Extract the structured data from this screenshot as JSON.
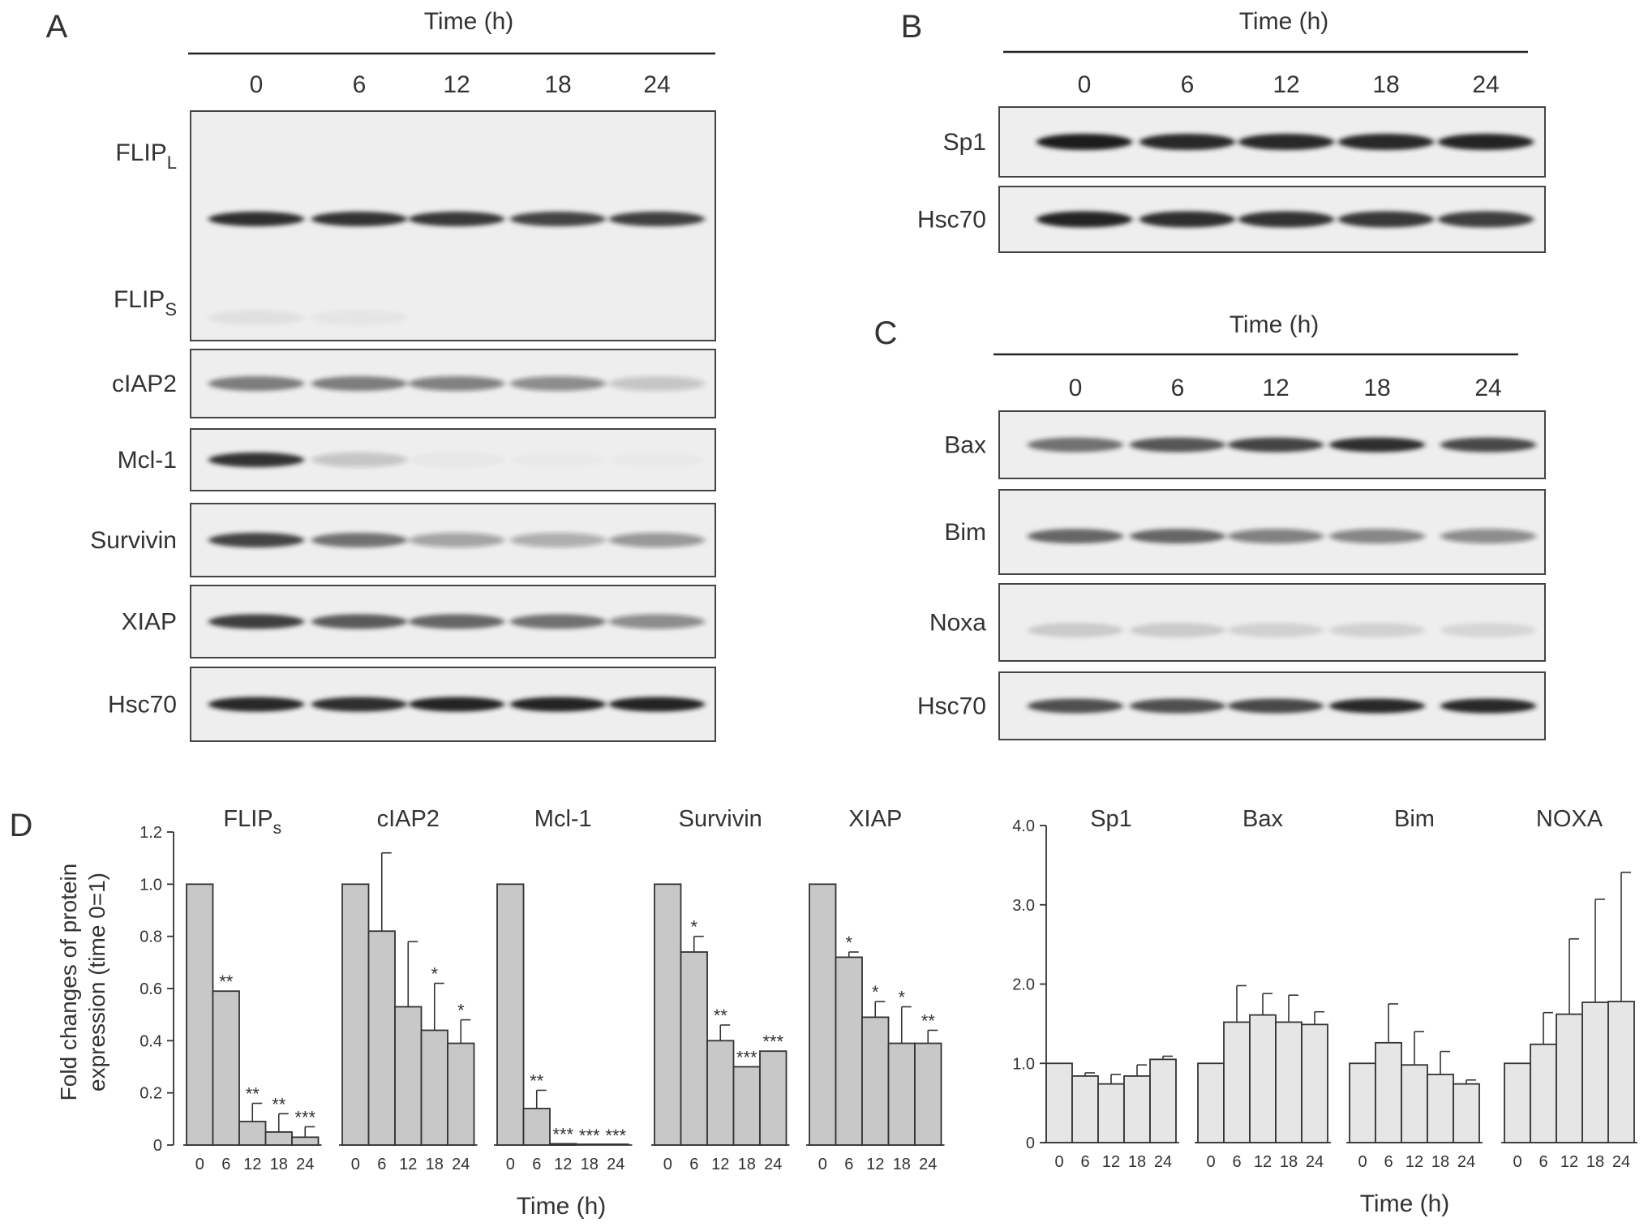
{
  "colors": {
    "panel_bg": "#eeeeee",
    "panel_border": "#444444",
    "band": "#1c1c1c",
    "bar_left": "#c8c8c8",
    "bar_right": "#e6e6e6",
    "bar_stroke": "#333333"
  },
  "panels": {
    "A": {
      "letter": "A",
      "header": "Time (h)",
      "lanes": [
        "0",
        "6",
        "12",
        "18",
        "24"
      ],
      "blots": [
        {
          "labels": [
            {
              "base": "FLIP",
              "sub": "L"
            },
            {
              "base": "FLIP",
              "sub": "S"
            }
          ],
          "bands": [
            {
              "row": 0.47,
              "intensity": [
                0.92,
                0.9,
                0.88,
                0.8,
                0.82
              ]
            },
            {
              "row": 0.9,
              "intensity": [
                0.06,
                0.04,
                0.0,
                0.0,
                0.0
              ]
            }
          ]
        },
        {
          "labels": [
            {
              "base": "cIAP2"
            }
          ],
          "bands": [
            {
              "row": 0.5,
              "intensity": [
                0.55,
                0.55,
                0.5,
                0.45,
                0.2
              ]
            }
          ]
        },
        {
          "labels": [
            {
              "base": "Mcl-1"
            }
          ],
          "bands": [
            {
              "row": 0.5,
              "intensity": [
                0.9,
                0.2,
                0.03,
                0.02,
                0.02
              ]
            }
          ]
        },
        {
          "labels": [
            {
              "base": "Survivin"
            }
          ],
          "bands": [
            {
              "row": 0.5,
              "intensity": [
                0.8,
                0.6,
                0.35,
                0.3,
                0.4
              ]
            }
          ]
        },
        {
          "labels": [
            {
              "base": "XIAP"
            }
          ],
          "bands": [
            {
              "row": 0.5,
              "intensity": [
                0.85,
                0.7,
                0.65,
                0.6,
                0.45
              ]
            }
          ]
        },
        {
          "labels": [
            {
              "base": "Hsc70"
            }
          ],
          "bands": [
            {
              "row": 0.5,
              "intensity": [
                0.95,
                0.92,
                0.97,
                0.97,
                0.97
              ]
            }
          ]
        }
      ]
    },
    "B": {
      "letter": "B",
      "header": "Time (h)",
      "lanes": [
        "0",
        "6",
        "12",
        "18",
        "24"
      ],
      "blots": [
        {
          "labels": [
            {
              "base": "Sp1"
            }
          ],
          "bands": [
            {
              "row": 0.5,
              "intensity": [
                1.0,
                0.95,
                0.95,
                0.95,
                0.97
              ]
            }
          ]
        },
        {
          "labels": [
            {
              "base": "Hsc70"
            }
          ],
          "bands": [
            {
              "row": 0.5,
              "intensity": [
                0.97,
                0.92,
                0.9,
                0.88,
                0.85
              ]
            }
          ]
        }
      ]
    },
    "C": {
      "letter": "C",
      "header": "Time (h)",
      "lanes": [
        "0",
        "6",
        "12",
        "18",
        "24"
      ],
      "blots": [
        {
          "labels": [
            {
              "base": "Bax"
            }
          ],
          "bands": [
            {
              "row": 0.5,
              "intensity": [
                0.6,
                0.72,
                0.8,
                0.92,
                0.78
              ]
            }
          ]
        },
        {
          "labels": [
            {
              "base": "Bim"
            }
          ],
          "bands": [
            {
              "row": 0.55,
              "intensity": [
                0.65,
                0.65,
                0.5,
                0.48,
                0.45
              ]
            }
          ]
        },
        {
          "labels": [
            {
              "base": "Noxa"
            }
          ],
          "bands": [
            {
              "row": 0.6,
              "intensity": [
                0.15,
                0.15,
                0.12,
                0.12,
                0.1
              ]
            }
          ]
        },
        {
          "labels": [
            {
              "base": "Hsc70"
            }
          ],
          "bands": [
            {
              "row": 0.5,
              "intensity": [
                0.75,
                0.75,
                0.78,
                0.95,
                0.95
              ]
            }
          ]
        }
      ]
    },
    "D": {
      "letter": "D",
      "ylabel_line1": "Fold changes of protein",
      "ylabel_line2": "expression (time 0=1)",
      "xlabel": "Time (h)"
    }
  },
  "chart_data": [
    {
      "type": "bar",
      "ylim": [
        0,
        1.2
      ],
      "yticks": [
        "0",
        "0.2",
        "0.4",
        "0.6",
        "0.8",
        "1.0",
        "1.2"
      ],
      "xlabel": "Time (h)",
      "ylabel": "Fold changes of protein expression (time 0=1)",
      "groups": [
        {
          "title": {
            "base": "FLIP",
            "sub": "s"
          },
          "categories": [
            "0",
            "6",
            "12",
            "18",
            "24"
          ],
          "values": [
            1.0,
            0.59,
            0.09,
            0.05,
            0.03
          ],
          "errors": [
            0,
            0,
            0.07,
            0.07,
            0.04
          ],
          "sig": [
            "",
            "**",
            "**",
            "**",
            "***"
          ]
        },
        {
          "title": {
            "base": "cIAP2"
          },
          "categories": [
            "0",
            "6",
            "12",
            "18",
            "24"
          ],
          "values": [
            1.0,
            0.82,
            0.53,
            0.44,
            0.39
          ],
          "errors": [
            0,
            0.3,
            0.25,
            0.18,
            0.09
          ],
          "sig": [
            "",
            "",
            "",
            "*",
            "*"
          ]
        },
        {
          "title": {
            "base": "Mcl-1"
          },
          "categories": [
            "0",
            "6",
            "12",
            "18",
            "24"
          ],
          "values": [
            1.0,
            0.14,
            0.005,
            0.0,
            0.0
          ],
          "errors": [
            0,
            0.07,
            0,
            0,
            0
          ],
          "sig": [
            "",
            "**",
            "***",
            "***",
            "***"
          ]
        },
        {
          "title": {
            "base": "Survivin"
          },
          "categories": [
            "0",
            "6",
            "12",
            "18",
            "24"
          ],
          "values": [
            1.0,
            0.74,
            0.4,
            0.3,
            0.36
          ],
          "errors": [
            0,
            0.06,
            0.06,
            0,
            0
          ],
          "sig": [
            "",
            "*",
            "**",
            "***",
            "***"
          ]
        },
        {
          "title": {
            "base": "XIAP"
          },
          "categories": [
            "0",
            "6",
            "12",
            "18",
            "24"
          ],
          "values": [
            1.0,
            0.72,
            0.49,
            0.39,
            0.39
          ],
          "errors": [
            0,
            0.02,
            0.06,
            0.14,
            0.05
          ],
          "sig": [
            "",
            "*",
            "*",
            "*",
            "**"
          ]
        }
      ]
    },
    {
      "type": "bar",
      "ylim": [
        0,
        4.0
      ],
      "yticks": [
        "0",
        "1.0",
        "2.0",
        "3.0",
        "4.0"
      ],
      "xlabel": "Time (h)",
      "groups": [
        {
          "title": {
            "base": "Sp1"
          },
          "categories": [
            "0",
            "6",
            "12",
            "18",
            "24"
          ],
          "values": [
            1.0,
            0.84,
            0.74,
            0.84,
            1.05
          ],
          "errors": [
            0,
            0.04,
            0.12,
            0.14,
            0.04
          ],
          "sig": [
            "",
            "",
            "",
            "",
            ""
          ]
        },
        {
          "title": {
            "base": "Bax"
          },
          "categories": [
            "0",
            "6",
            "12",
            "18",
            "24"
          ],
          "values": [
            1.0,
            1.52,
            1.61,
            1.52,
            1.49
          ],
          "errors": [
            0,
            0.46,
            0.27,
            0.34,
            0.16
          ],
          "sig": [
            "",
            "",
            "",
            "",
            ""
          ]
        },
        {
          "title": {
            "base": "Bim"
          },
          "categories": [
            "0",
            "6",
            "12",
            "18",
            "24"
          ],
          "values": [
            1.0,
            1.26,
            0.98,
            0.86,
            0.74
          ],
          "errors": [
            0,
            0.49,
            0.42,
            0.29,
            0.05
          ],
          "sig": [
            "",
            "",
            "",
            "",
            ""
          ]
        },
        {
          "title": {
            "base": "NOXA"
          },
          "categories": [
            "0",
            "6",
            "12",
            "18",
            "24"
          ],
          "values": [
            1.0,
            1.24,
            1.62,
            1.77,
            1.78
          ],
          "errors": [
            0,
            0.4,
            0.95,
            1.3,
            1.63
          ],
          "sig": [
            "",
            "",
            "",
            "",
            ""
          ]
        }
      ]
    }
  ]
}
